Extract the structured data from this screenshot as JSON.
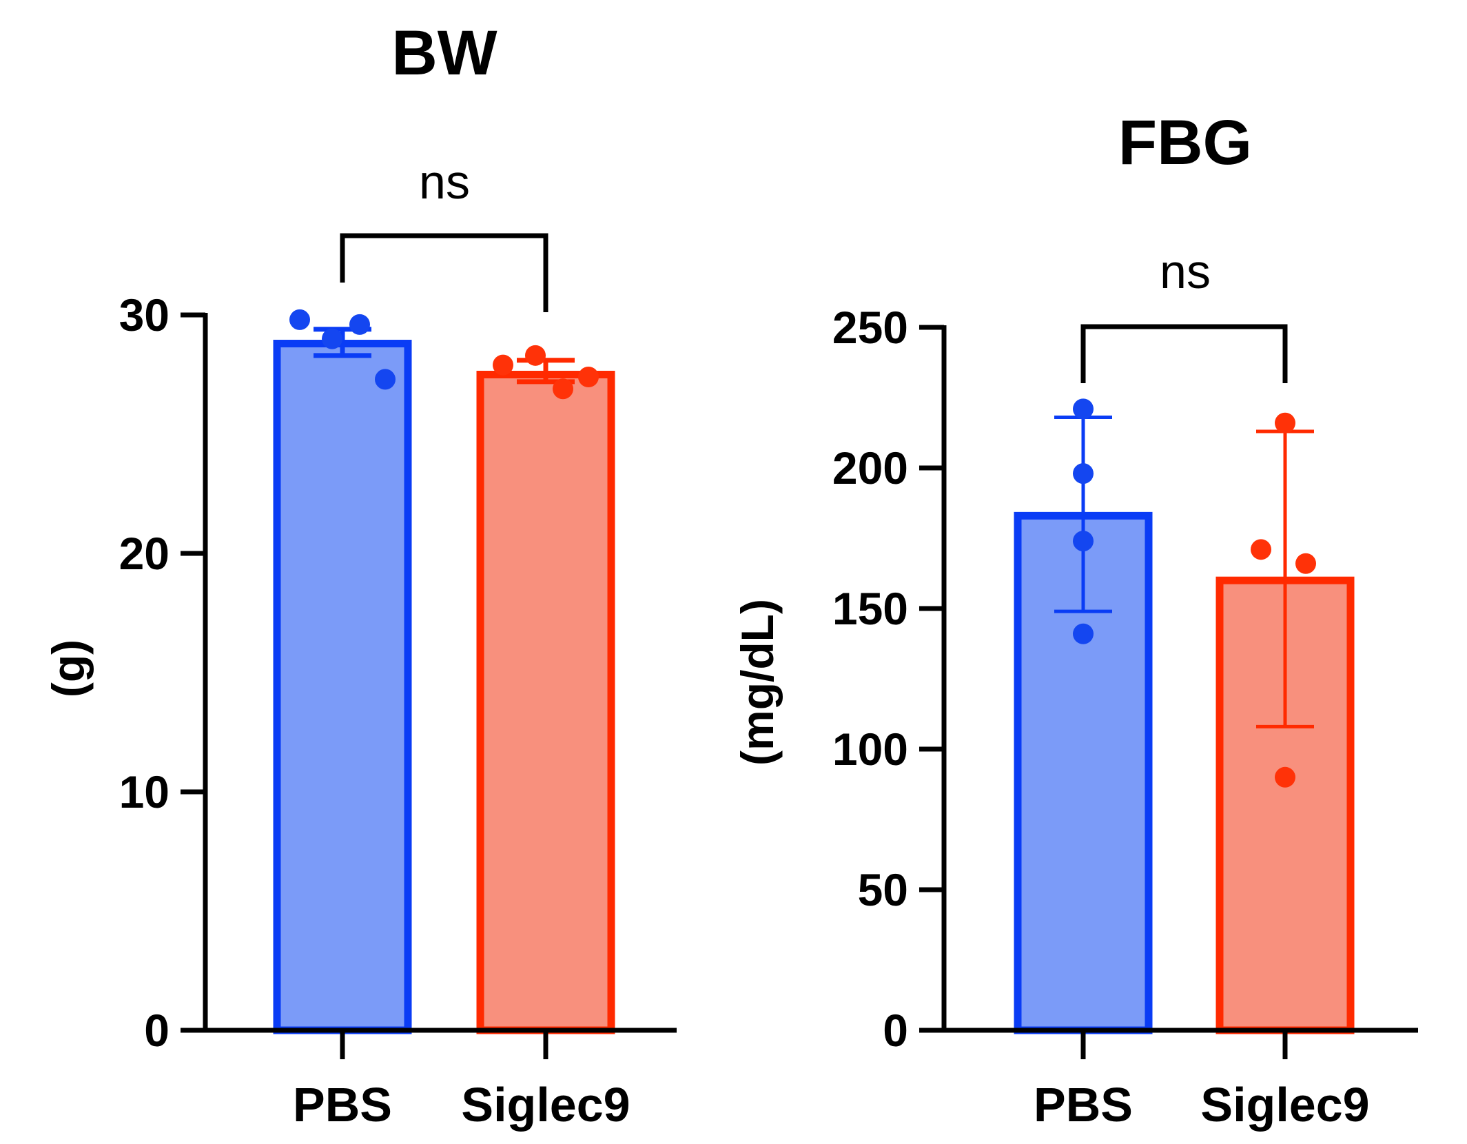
{
  "chart_data": [
    {
      "type": "bar",
      "title": "BW",
      "xlabel": "",
      "ylabel": "(g)",
      "ylim": [
        0,
        30
      ],
      "yticks": [
        0,
        10,
        20,
        30
      ],
      "categories": [
        "PBS",
        "Siglec9"
      ],
      "values": [
        28.8,
        27.5
      ],
      "error": [
        [
          28.3,
          29.4
        ],
        [
          27.2,
          28.1
        ]
      ],
      "points": [
        [
          29.8,
          29.0,
          29.6,
          27.3
        ],
        [
          27.9,
          28.3,
          26.9,
          27.4
        ]
      ],
      "comparison": {
        "label": "ns",
        "between": [
          "PBS",
          "Siglec9"
        ]
      }
    },
    {
      "type": "bar",
      "title": "FBG",
      "xlabel": "",
      "ylabel": "(mg/dL)",
      "ylim": [
        0,
        250
      ],
      "yticks": [
        0,
        50,
        100,
        150,
        200,
        250
      ],
      "categories": [
        "PBS",
        "Siglec9"
      ],
      "values": [
        183,
        160
      ],
      "error": [
        [
          149,
          218
        ],
        [
          108,
          213
        ]
      ],
      "points": [
        [
          221,
          198,
          174,
          141
        ],
        [
          216,
          171,
          166,
          90
        ]
      ],
      "comparison": {
        "label": "ns",
        "between": [
          "PBS",
          "Siglec9"
        ]
      }
    }
  ],
  "colors": {
    "PBS": {
      "fill": "#7b9bf8",
      "stroke": "#0a3cf5",
      "point": "#1446f0"
    },
    "Siglec9": {
      "fill": "#f8907d",
      "stroke": "#ff2a00",
      "point": "#ff3208"
    }
  }
}
